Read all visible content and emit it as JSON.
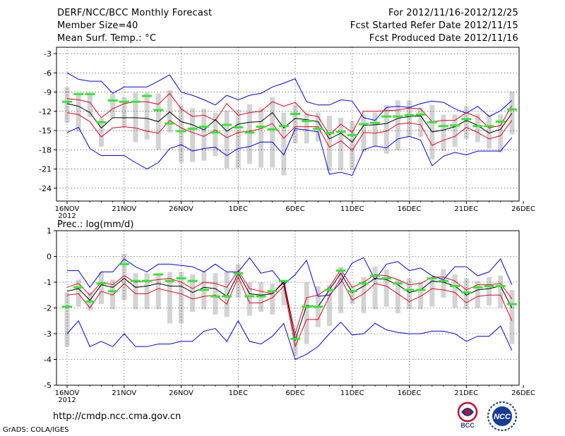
{
  "header": {
    "title": "DERF/NCC/BCC Monthly Forecast",
    "member_size": "Member Size=40",
    "variable": "Mean Surf. Temp.: °C",
    "period": "For 2012/11/16-2012/12/25",
    "refer_date": "Fcst Started Refer Date 2012/11/15",
    "produced_date": "Fcst Produced Date 2012/11/16"
  },
  "footer": {
    "url": "http://cmdp.ncc.cma.gov.cn",
    "credit": "GrADS: COLA/IGES"
  },
  "logos": {
    "bcc": "BCC",
    "ncc": "NCC"
  },
  "colors": {
    "ensemble_mean": "#000000",
    "spread": "#e8001c",
    "envelope": "#0000ee",
    "member_box": "#d3d3d3",
    "climatology_marker": "#33e733",
    "grid": "#000000"
  },
  "chart_data": [
    {
      "type": "line",
      "title": "Mean Surf. Temp.: °C",
      "xlabel": "",
      "ylabel": "",
      "x_tick_labels": [
        "16NOV",
        "21NOV",
        "26NOV",
        "1DEC",
        "6DEC",
        "11DEC",
        "16DEC",
        "21DEC",
        "26DEC"
      ],
      "x_year_label": "2012",
      "y_ticks": [
        -3,
        -6,
        -9,
        -12,
        -15,
        -18,
        -21,
        -24
      ],
      "ylim": [
        -26,
        -2
      ],
      "grid": true,
      "days": 40,
      "series": [
        {
          "name": "upper envelope",
          "values": [
            -6,
            -7,
            -7.3,
            -7.3,
            -9.2,
            -8.2,
            -8.2,
            -8.2,
            -7.3,
            -6.3,
            -9,
            -9.5,
            -10.2,
            -11,
            -9.5,
            -10.2,
            -9.5,
            -9.2,
            -8.2,
            -7.6,
            -6.9,
            -10.5,
            -11,
            -11,
            -10.2,
            -10.4,
            -13,
            -13.4,
            -11.4,
            -11.2,
            -11.4,
            -10.8,
            -10.4,
            -10.6,
            -11.6,
            -12.3,
            -11.2,
            -12.8,
            -11.9,
            -10.3
          ]
        },
        {
          "name": "upper spread",
          "values": [
            -10,
            -10.2,
            -10.6,
            -13,
            -11.6,
            -10.8,
            -10.5,
            -10.5,
            -10.9,
            -9.2,
            -11.6,
            -12.8,
            -12.6,
            -13.4,
            -10.8,
            -12.6,
            -12.2,
            -12,
            -10.5,
            -11.2,
            -10.6,
            -12.5,
            -12.8,
            -15.7,
            -14,
            -15.3,
            -12,
            -12,
            -11.9,
            -11.8,
            -11.5,
            -11.6,
            -13.6,
            -13.4,
            -13.4,
            -12.2,
            -12.9,
            -14.6,
            -14.2,
            -11.1
          ]
        },
        {
          "name": "ensemble mean",
          "values": [
            -10.8,
            -11.2,
            -12.2,
            -14.6,
            -13,
            -13,
            -13,
            -13.1,
            -13.6,
            -12.1,
            -13.6,
            -14.1,
            -14.9,
            -13.3,
            -15.1,
            -14,
            -13.7,
            -13.6,
            -12.2,
            -14.6,
            -13.1,
            -13.3,
            -13.6,
            -16.3,
            -15.4,
            -16.8,
            -14.2,
            -14.1,
            -13.9,
            -13.1,
            -12.8,
            -12.7,
            -15.2,
            -14.9,
            -14.4,
            -13.4,
            -14.2,
            -15.4,
            -14.8,
            -12.3
          ]
        },
        {
          "name": "lower spread",
          "values": [
            -12.2,
            -12.5,
            -13.6,
            -16,
            -14.6,
            -14.4,
            -14.6,
            -15.1,
            -15.4,
            -13.4,
            -14.6,
            -15.3,
            -15.9,
            -14.9,
            -16.1,
            -15.3,
            -15.1,
            -14.7,
            -13.9,
            -16.2,
            -14.4,
            -14.4,
            -14.4,
            -17.6,
            -16.6,
            -18.1,
            -15.3,
            -15.4,
            -15.1,
            -14,
            -13.8,
            -14.1,
            -17.3,
            -16.5,
            -15.9,
            -14.5,
            -15.3,
            -16.3,
            -15.8,
            -13.4
          ]
        },
        {
          "name": "lower envelope",
          "values": [
            -15.3,
            -14.5,
            -17.8,
            -18.9,
            -18.9,
            -18.9,
            -20,
            -21,
            -20,
            -17.8,
            -17.2,
            -18.2,
            -17.8,
            -17.6,
            -18.9,
            -17.8,
            -17.5,
            -16.8,
            -16.8,
            -18.8,
            -14.7,
            -14.9,
            -15.2,
            -21.8,
            -21.5,
            -22,
            -18,
            -17.4,
            -17.7,
            -16.3,
            -15.9,
            -16.5,
            -20.5,
            -19,
            -18.4,
            -18.8,
            -18.2,
            -18.2,
            -18.2,
            -16.1
          ]
        }
      ],
      "member_boxes": [
        [
          -13.8,
          -8.2
        ],
        [
          -15.2,
          -9.2
        ],
        [
          -12.9,
          -9.1
        ],
        [
          -17.5,
          -13.1
        ],
        [
          -13,
          -9.3
        ],
        [
          -14.5,
          -9.8
        ],
        [
          -16.8,
          -9.1
        ],
        [
          -16.4,
          -9.1
        ],
        [
          -18,
          -9.2
        ],
        [
          -15.3,
          -8.7
        ],
        [
          -20,
          -11
        ],
        [
          -19.9,
          -11.5
        ],
        [
          -19.7,
          -11.6
        ],
        [
          -19,
          -12.2
        ],
        [
          -20.9,
          -11.9
        ],
        [
          -20.9,
          -11.7
        ],
        [
          -20.2,
          -10.9
        ],
        [
          -20.8,
          -11.5
        ],
        [
          -20.8,
          -9.8
        ],
        [
          -22,
          -12.2
        ],
        [
          -17,
          -11
        ],
        [
          -17,
          -12.2
        ],
        [
          -16.7,
          -12.2
        ],
        [
          -21.3,
          -12.7
        ],
        [
          -21.2,
          -13
        ],
        [
          -21.2,
          -13.5
        ],
        [
          -18.3,
          -12.5
        ],
        [
          -17.4,
          -12.2
        ],
        [
          -18.6,
          -11
        ],
        [
          -18.1,
          -10.3
        ],
        [
          -15.9,
          -10.3
        ],
        [
          -16,
          -11.4
        ],
        [
          -19.5,
          -11
        ],
        [
          -18.2,
          -12.5
        ],
        [
          -17.5,
          -12.5
        ],
        [
          -16.3,
          -11.2
        ],
        [
          -16.8,
          -12.4
        ],
        [
          -17.8,
          -12.5
        ],
        [
          -18.4,
          -12.5
        ],
        [
          -15.6,
          -8.9
        ]
      ],
      "climatology": [
        -10.5,
        -9.3,
        -9.3,
        -13.7,
        -10.3,
        -10.5,
        -10.5,
        -9.6,
        -11.8,
        -13.9,
        -15.1,
        -14.7,
        -14.4,
        -15.3,
        -14.1,
        -14.5,
        -15.3,
        -14.4,
        -14.8,
        -14.3,
        -12.4,
        -13.5,
        -14.7,
        -15.4,
        -15.2,
        -15.7,
        -14,
        -13.8,
        -12.8,
        -12.8,
        -12.6,
        -12.5,
        -13.7,
        -14.3,
        -14.2,
        -13.2,
        -14.3,
        -14.3,
        -13.6,
        -11.7
      ]
    },
    {
      "type": "line",
      "title": "Prec.: log(mm/d)",
      "xlabel": "",
      "ylabel": "",
      "x_tick_labels": [
        "16NOV",
        "21NOV",
        "26NOV",
        "1DEC",
        "6DEC",
        "11DEC",
        "16DEC",
        "21DEC",
        "26DEC"
      ],
      "x_year_label": "2012",
      "y_ticks": [
        1,
        0,
        -1,
        -2,
        -3,
        -4,
        -5
      ],
      "ylim": [
        -5,
        1
      ],
      "grid": true,
      "days": 40,
      "series": [
        {
          "name": "upper envelope",
          "values": [
            -0.55,
            -0.55,
            -1.2,
            -0.6,
            -0.6,
            -0.1,
            -0.4,
            -0.6,
            -0.3,
            -0.3,
            -0.35,
            -0.4,
            -0.6,
            -0.3,
            -0.6,
            -0.6,
            -0.05,
            -0.65,
            -0.55,
            -1.1,
            -0.7,
            -0.15,
            -1.55,
            -1.5,
            -1.0,
            -0.25,
            -0.05,
            -0.9,
            -0.3,
            -0.2,
            -0.55,
            -0.45,
            -0.75,
            -0.9,
            -0.4,
            -0.4,
            -0.75,
            -0.6,
            -0.1,
            -1.1
          ]
        },
        {
          "name": "upper spread",
          "values": [
            -1.2,
            -1.05,
            -1.5,
            -1.0,
            -1.1,
            -0.75,
            -1.0,
            -0.95,
            -0.9,
            -0.85,
            -1.0,
            -1.25,
            -1.0,
            -1.05,
            -1.2,
            -0.55,
            -1.25,
            -1.35,
            -1.45,
            -0.95,
            -3.0,
            -1.6,
            -1.5,
            -1.2,
            -0.5,
            -1.2,
            -1.0,
            -0.7,
            -0.75,
            -0.9,
            -1.1,
            -1.05,
            -0.8,
            -0.8,
            -0.95,
            -1.3,
            -1.1,
            -1.1,
            -1.05,
            -1.65
          ]
        },
        {
          "name": "ensemble mean",
          "values": [
            -1.35,
            -1.25,
            -1.7,
            -1.1,
            -1.2,
            -0.85,
            -1.2,
            -1.15,
            -1.05,
            -1.15,
            -1.15,
            -1.4,
            -1.2,
            -1.25,
            -1.55,
            -0.65,
            -1.45,
            -1.5,
            -1.45,
            -1.0,
            -3.25,
            -1.9,
            -1.95,
            -1.3,
            -0.65,
            -1.4,
            -1.15,
            -0.85,
            -0.9,
            -1.1,
            -1.4,
            -1.3,
            -0.95,
            -1.0,
            -1.15,
            -1.5,
            -1.3,
            -1.25,
            -1.15,
            -2.0
          ]
        },
        {
          "name": "lower spread",
          "values": [
            -1.5,
            -1.45,
            -2.0,
            -1.35,
            -1.5,
            -1.05,
            -1.45,
            -1.45,
            -1.25,
            -1.35,
            -1.45,
            -1.65,
            -1.55,
            -1.5,
            -1.85,
            -0.8,
            -1.8,
            -1.8,
            -1.6,
            -1.15,
            -3.5,
            -2.45,
            -2.45,
            -1.55,
            -0.85,
            -1.7,
            -1.45,
            -1.05,
            -1.15,
            -1.45,
            -1.75,
            -1.55,
            -1.25,
            -1.3,
            -1.4,
            -1.8,
            -1.55,
            -1.5,
            -1.5,
            -2.5
          ]
        },
        {
          "name": "lower envelope",
          "values": [
            -3.0,
            -2.5,
            -3.5,
            -3.3,
            -3.5,
            -3.0,
            -3.5,
            -3.5,
            -3.4,
            -3.4,
            -3.3,
            -3.3,
            -2.9,
            -2.8,
            -3.3,
            -2.5,
            -3.3,
            -3.4,
            -3.1,
            -2.6,
            -4.0,
            -3.8,
            -3.5,
            -3.0,
            -2.55,
            -3.05,
            -3.0,
            -2.6,
            -2.85,
            -2.95,
            -3.0,
            -3.0,
            -2.9,
            -2.9,
            -3.0,
            -3.3,
            -3.1,
            -3.1,
            -2.7,
            -3.65
          ]
        }
      ],
      "member_boxes": [
        [
          -3.5,
          -1.4
        ],
        [
          -1.95,
          -0.9
        ],
        [
          -2.1,
          -1.4
        ],
        [
          -1.85,
          -0.6
        ],
        [
          -2.05,
          -0.9
        ],
        [
          -1.7,
          0.1
        ],
        [
          -2.05,
          -0.65
        ],
        [
          -2.05,
          -0.65
        ],
        [
          -2.05,
          -0.65
        ],
        [
          -2.6,
          -0.6
        ],
        [
          -2.6,
          -0.6
        ],
        [
          -2.15,
          -0.7
        ],
        [
          -2.05,
          -0.55
        ],
        [
          -2.25,
          -0.65
        ],
        [
          -2.35,
          -0.6
        ],
        [
          -1.6,
          -0.3
        ],
        [
          -2.3,
          -1.0
        ],
        [
          -2.15,
          -1.0
        ],
        [
          -2.25,
          -1.05
        ],
        [
          -1.9,
          -0.95
        ],
        [
          -3.85,
          -3.0
        ],
        [
          -3.4,
          -1.0
        ],
        [
          -2.75,
          -1.15
        ],
        [
          -2.7,
          -1.1
        ],
        [
          -2.2,
          -0.4
        ],
        [
          -1.85,
          -1.15
        ],
        [
          -2.2,
          -0.8
        ],
        [
          -2.05,
          -0.4
        ],
        [
          -1.95,
          -0.5
        ],
        [
          -2.2,
          -0.9
        ],
        [
          -2.05,
          -0.85
        ],
        [
          -2.05,
          -1.0
        ],
        [
          -1.95,
          -0.85
        ],
        [
          -1.6,
          -0.5
        ],
        [
          -2.0,
          -0.7
        ],
        [
          -2.05,
          -0.85
        ],
        [
          -2.0,
          -0.95
        ],
        [
          -1.9,
          -0.8
        ],
        [
          -2.0,
          -0.75
        ],
        [
          -3.4,
          -1.3
        ]
      ],
      "climatology": [
        -1.95,
        -1.2,
        -1.75,
        -1.05,
        -1.35,
        -0.3,
        -0.95,
        -0.95,
        -0.7,
        -0.95,
        -0.85,
        -0.95,
        -1.3,
        -1.55,
        -1.55,
        -0.65,
        -1.55,
        -1.55,
        -1.35,
        -0.95,
        -3.2,
        -1.95,
        -1.95,
        -1.3,
        -0.55,
        -1.35,
        -1.05,
        -0.75,
        -0.85,
        -1.05,
        -1.3,
        -1.3,
        -0.85,
        -0.95,
        -1.15,
        -1.4,
        -1.2,
        -1.15,
        -1.15,
        -1.85
      ]
    }
  ]
}
